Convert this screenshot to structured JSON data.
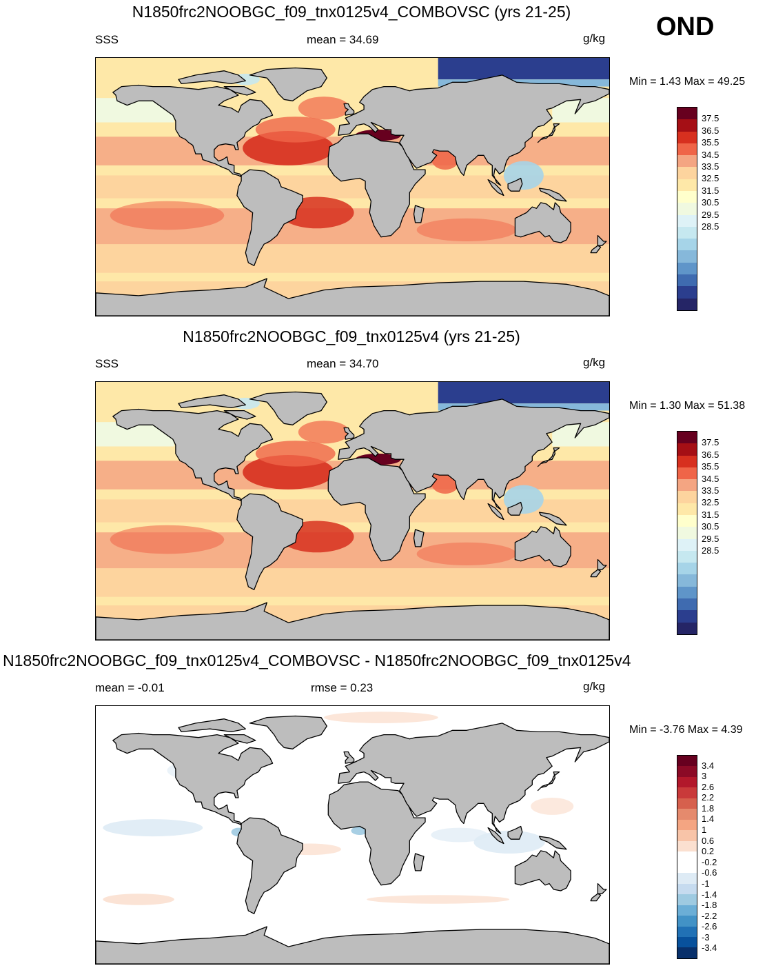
{
  "season": "OND",
  "panels": [
    {
      "title": "N1850frc2NOOBGC_f09_tnx0125v4_COMBOVSC (yrs 21-25)",
      "left_label": "SSS",
      "center_label": "mean =  34.69",
      "units": "g/kg",
      "minmax": "Min =   1.43 Max =  49.25",
      "type": "abs"
    },
    {
      "title": "N1850frc2NOOBGC_f09_tnx0125v4 (yrs 21-25)",
      "left_label": "SSS",
      "center_label": "mean =  34.70",
      "units": "g/kg",
      "minmax": "Min =   1.30 Max =  51.38",
      "type": "abs"
    },
    {
      "title": "N1850frc2NOOBGC_f09_tnx0125v4_COMBOVSC - N1850frc2NOOBGC_f09_tnx0125v4",
      "left_label": "mean =  -0.01",
      "center_label": "rmse =   0.23",
      "units": "g/kg",
      "minmax": "Min =  -3.76 Max =   4.39",
      "type": "diff"
    }
  ],
  "colorbar_abs": {
    "labels": [
      "37.5",
      "36.5",
      "35.5",
      "34.5",
      "33.5",
      "32.5",
      "31.5",
      "30.5",
      "29.5",
      "28.5"
    ],
    "colors": [
      "#67001f",
      "#a50f15",
      "#d7301f",
      "#ef6548",
      "#f4a582",
      "#fdd49e",
      "#fee8a8",
      "#ffffcc",
      "#f0f9e0",
      "#def2f7",
      "#c6e8f0",
      "#a6d4e8",
      "#86b8da",
      "#5f95c9",
      "#3f6bb0",
      "#2b3e8e",
      "#252566"
    ]
  },
  "colorbar_diff": {
    "labels": [
      "3.4",
      "3",
      "2.6",
      "2.2",
      "1.8",
      "1.4",
      "1",
      "0.6",
      "0.2",
      "-0.2",
      "-0.6",
      "-1",
      "-1.4",
      "-1.8",
      "-2.2",
      "-2.6",
      "-3",
      "-3.4"
    ],
    "colors": [
      "#67001f",
      "#8b0a26",
      "#b2182b",
      "#c93a3a",
      "#d6604d",
      "#e58a6d",
      "#f4a582",
      "#f8c4a8",
      "#fbe0d0",
      "#ffffff",
      "#ffffff",
      "#deebf5",
      "#c6dbef",
      "#9ecae1",
      "#6baed6",
      "#4292c6",
      "#2171b5",
      "#08519c",
      "#08306b"
    ]
  }
}
